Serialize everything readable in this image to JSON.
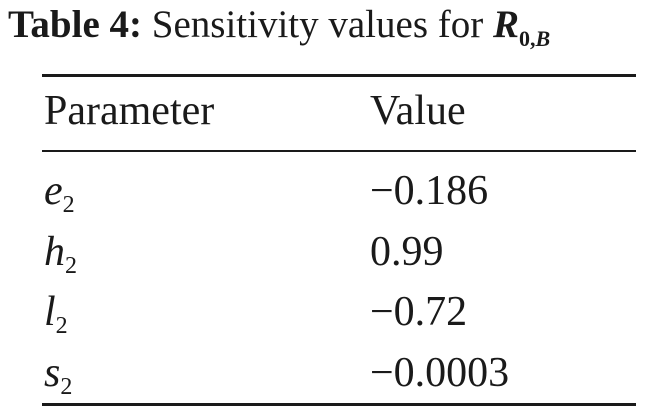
{
  "caption": {
    "label": "Table 4:",
    "text": "Sensitivity values for",
    "symbol": "R",
    "symbol_sub_bold": "0",
    "symbol_sub_sep": ",",
    "symbol_sub_italic": "B"
  },
  "table": {
    "headers": {
      "param": "Parameter",
      "value": "Value"
    },
    "rows": [
      {
        "param": "e",
        "sub": "2",
        "value": "−0.186"
      },
      {
        "param": "h",
        "sub": "2",
        "value": "0.99"
      },
      {
        "param": "l",
        "sub": "2",
        "value": "−0.72"
      },
      {
        "param": "s",
        "sub": "2",
        "value": "−0.0003"
      }
    ]
  }
}
